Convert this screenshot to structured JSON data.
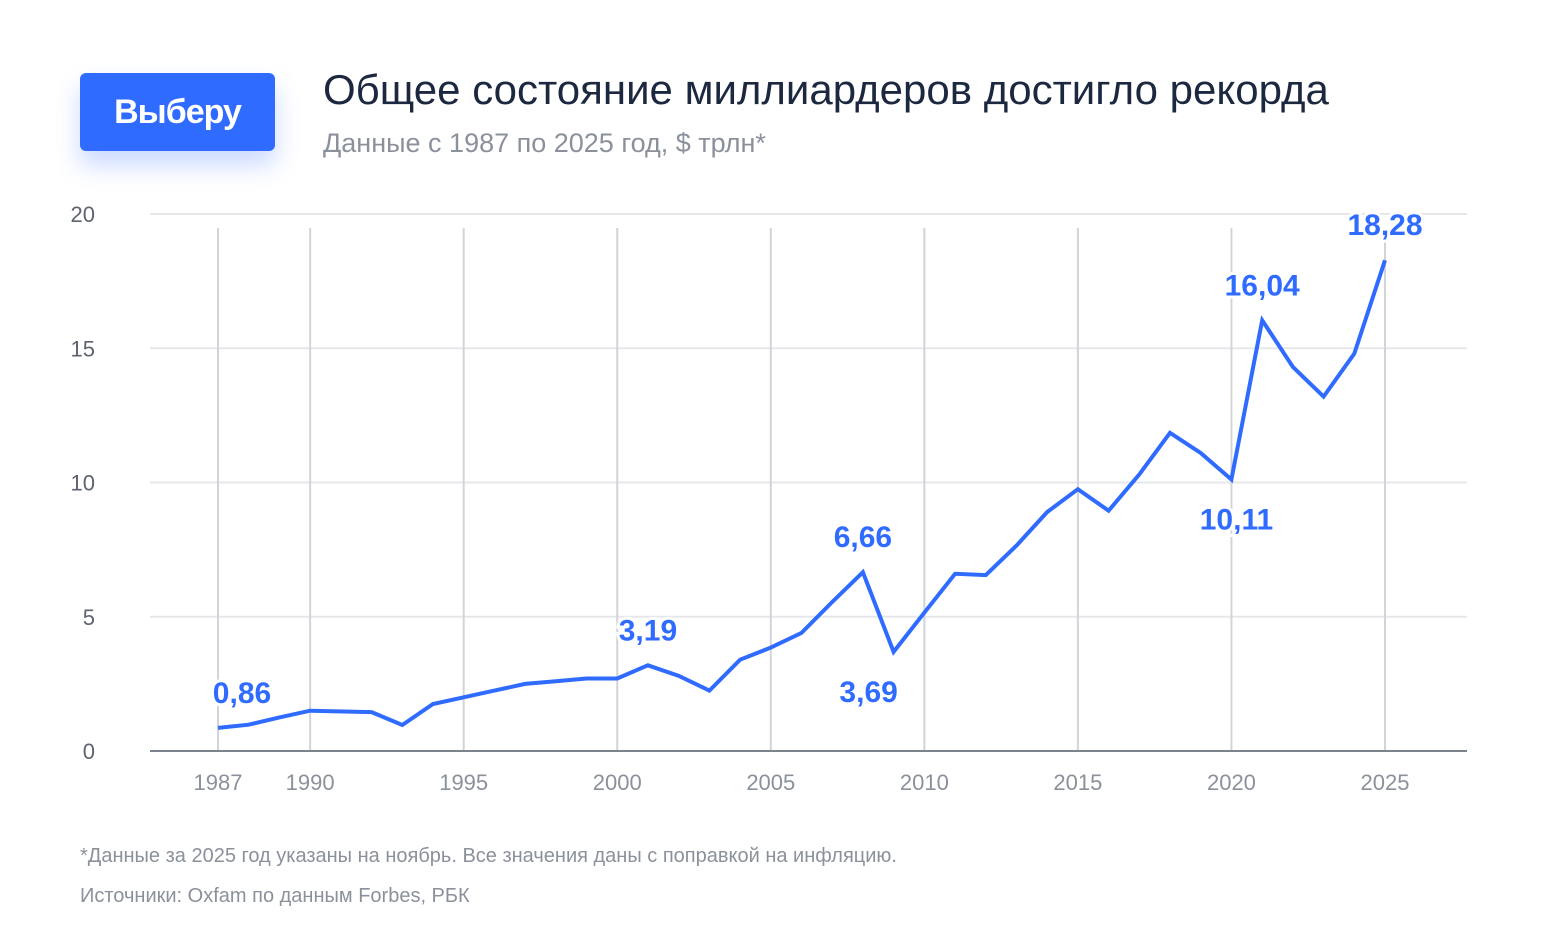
{
  "brand": {
    "logo_text": "Выберу",
    "accent": "#2f6bff"
  },
  "header": {
    "title": "Общее состояние миллиардеров достигло рекорда",
    "subtitle": "Данные с 1987 по 2025 год, $ трлн*"
  },
  "footer": {
    "note": "*Данные за 2025 год указаны на ноябрь. Все значения даны с поправкой на инфляцию.",
    "source": "Источники: Oxfam по данным Forbes, РБК"
  },
  "chart_data": {
    "type": "line",
    "title": "Общее состояние миллиардеров достигло рекорда",
    "xlabel": "",
    "ylabel": "$ трлн",
    "xlim": [
      1987,
      2025
    ],
    "ylim": [
      0,
      20
    ],
    "grid": true,
    "y_ticks": [
      0,
      5,
      10,
      15,
      20
    ],
    "x_ticks": [
      1987,
      1990,
      1995,
      2000,
      2005,
      2010,
      2015,
      2020,
      2025
    ],
    "series": [
      {
        "name": "Состояние миллиардеров",
        "color": "#2f6bff",
        "x": [
          1987,
          1988,
          1989,
          1990,
          1992,
          1993,
          1994,
          1995,
          1996,
          1997,
          1998,
          1999,
          2000,
          2001,
          2002,
          2003,
          2004,
          2005,
          2006,
          2007,
          2008,
          2009,
          2010,
          2011,
          2012,
          2013,
          2014,
          2015,
          2016,
          2017,
          2018,
          2019,
          2020,
          2021,
          2022,
          2023,
          2024,
          2025
        ],
        "values": [
          0.86,
          0.98,
          1.25,
          1.5,
          1.45,
          0.97,
          1.75,
          2.0,
          2.25,
          2.5,
          2.6,
          2.7,
          2.7,
          3.19,
          2.8,
          2.25,
          3.4,
          3.85,
          4.4,
          5.55,
          6.66,
          3.69,
          5.15,
          6.6,
          6.55,
          7.65,
          8.9,
          9.75,
          8.95,
          10.3,
          11.85,
          11.1,
          10.11,
          16.04,
          14.3,
          13.2,
          14.8,
          18.28
        ]
      }
    ],
    "annotations": [
      {
        "x": 1987,
        "value": 0.86,
        "text": "0,86",
        "pos": "above"
      },
      {
        "x": 2001,
        "value": 3.19,
        "text": "3,19",
        "pos": "above"
      },
      {
        "x": 2008,
        "value": 6.66,
        "text": "6,66",
        "pos": "above"
      },
      {
        "x": 2009,
        "value": 3.69,
        "text": "3,69",
        "pos": "below"
      },
      {
        "x": 2020,
        "value": 10.11,
        "text": "10,11",
        "pos": "below"
      },
      {
        "x": 2021,
        "value": 16.04,
        "text": "16,04",
        "pos": "above"
      },
      {
        "x": 2025,
        "value": 18.28,
        "text": "18,28",
        "pos": "above"
      }
    ]
  }
}
